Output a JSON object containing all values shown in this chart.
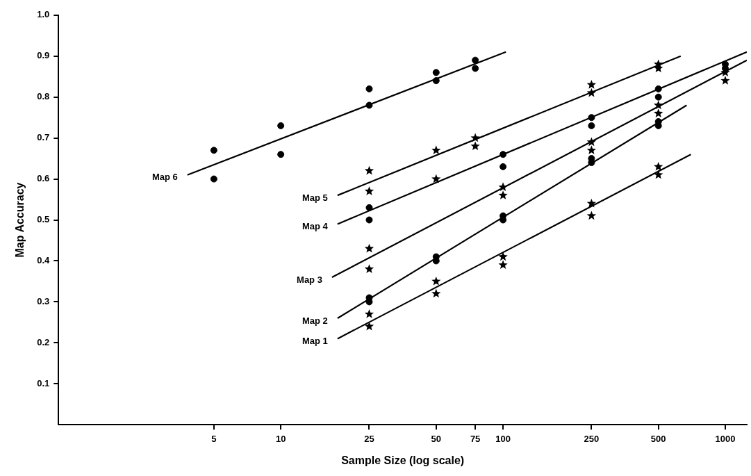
{
  "chart_data": {
    "type": "scatter",
    "xlabel": "Sample Size (log scale)",
    "ylabel": "Map Accuracy",
    "log": "x",
    "grid": false,
    "legend": false,
    "xlim": [
      1,
      1250
    ],
    "xticks": [
      5,
      10,
      25,
      50,
      75,
      100,
      250,
      500,
      1000
    ],
    "ylim": [
      0,
      1.0
    ],
    "yticks": [
      0.1,
      0.2,
      0.3,
      0.4,
      0.5,
      0.6,
      0.7,
      0.8,
      0.9,
      {
        "value": 1.0,
        "label": "1.0"
      }
    ],
    "series": [
      {
        "type": "scatter",
        "marker": "star",
        "color": "#000000",
        "x": [
          25,
          25,
          50,
          50,
          100,
          100,
          250,
          250,
          500,
          500
        ],
        "values": [
          0.27,
          0.24,
          0.35,
          0.32,
          0.41,
          0.39,
          0.54,
          0.51,
          0.63,
          0.61
        ]
      },
      {
        "type": "scatter",
        "marker": "circle",
        "color": "#000000",
        "x": [
          25,
          25,
          50,
          50,
          100,
          100,
          250,
          250,
          500,
          500
        ],
        "values": [
          0.31,
          0.3,
          0.41,
          0.4,
          0.51,
          0.5,
          0.65,
          0.64,
          0.74,
          0.73
        ]
      },
      {
        "type": "scatter",
        "marker": "star",
        "color": "#000000",
        "x": [
          25,
          25,
          100,
          100,
          250,
          250,
          500,
          500,
          1000,
          1000
        ],
        "values": [
          0.43,
          0.38,
          0.58,
          0.56,
          0.69,
          0.67,
          0.78,
          0.76,
          0.86,
          0.84
        ]
      },
      {
        "type": "scatter",
        "marker": "circle",
        "color": "#000000",
        "x": [
          25,
          25,
          100,
          100,
          250,
          250,
          500,
          500,
          1000,
          1000
        ],
        "values": [
          0.53,
          0.5,
          0.66,
          0.63,
          0.75,
          0.73,
          0.82,
          0.8,
          0.88,
          0.87
        ]
      },
      {
        "type": "scatter",
        "marker": "star",
        "color": "#000000",
        "x": [
          25,
          25,
          50,
          50,
          75,
          75,
          250,
          250,
          500,
          500
        ],
        "values": [
          0.62,
          0.57,
          0.67,
          0.6,
          0.7,
          0.68,
          0.83,
          0.81,
          0.88,
          0.87
        ]
      },
      {
        "type": "scatter",
        "marker": "circle",
        "color": "#000000",
        "x": [
          5,
          5,
          10,
          10,
          25,
          25,
          50,
          50,
          75,
          75
        ],
        "values": [
          0.67,
          0.6,
          0.73,
          0.66,
          0.82,
          0.78,
          0.86,
          0.84,
          0.89,
          0.87
        ]
      },
      {
        "type": "line",
        "name": "Map 1",
        "marker": "none",
        "color": "#000000",
        "x": [
          18,
          700
        ],
        "values": [
          0.21,
          0.66
        ]
      },
      {
        "type": "line",
        "name": "Map 2",
        "marker": "none",
        "color": "#000000",
        "x": [
          18,
          670
        ],
        "values": [
          0.26,
          0.78
        ]
      },
      {
        "type": "line",
        "name": "Map 3",
        "marker": "none",
        "color": "#000000",
        "x": [
          17,
          1250
        ],
        "values": [
          0.36,
          0.89
        ]
      },
      {
        "type": "line",
        "name": "Map 4",
        "marker": "none",
        "color": "#000000",
        "x": [
          18,
          1250
        ],
        "values": [
          0.49,
          0.91
        ]
      },
      {
        "type": "line",
        "name": "Map 5",
        "marker": "none",
        "color": "#000000",
        "x": [
          18,
          630
        ],
        "values": [
          0.56,
          0.9
        ]
      },
      {
        "type": "line",
        "name": "Map 6",
        "marker": "none",
        "color": "#000000",
        "x": [
          3.8,
          103
        ],
        "values": [
          0.61,
          0.91
        ]
      }
    ]
  }
}
